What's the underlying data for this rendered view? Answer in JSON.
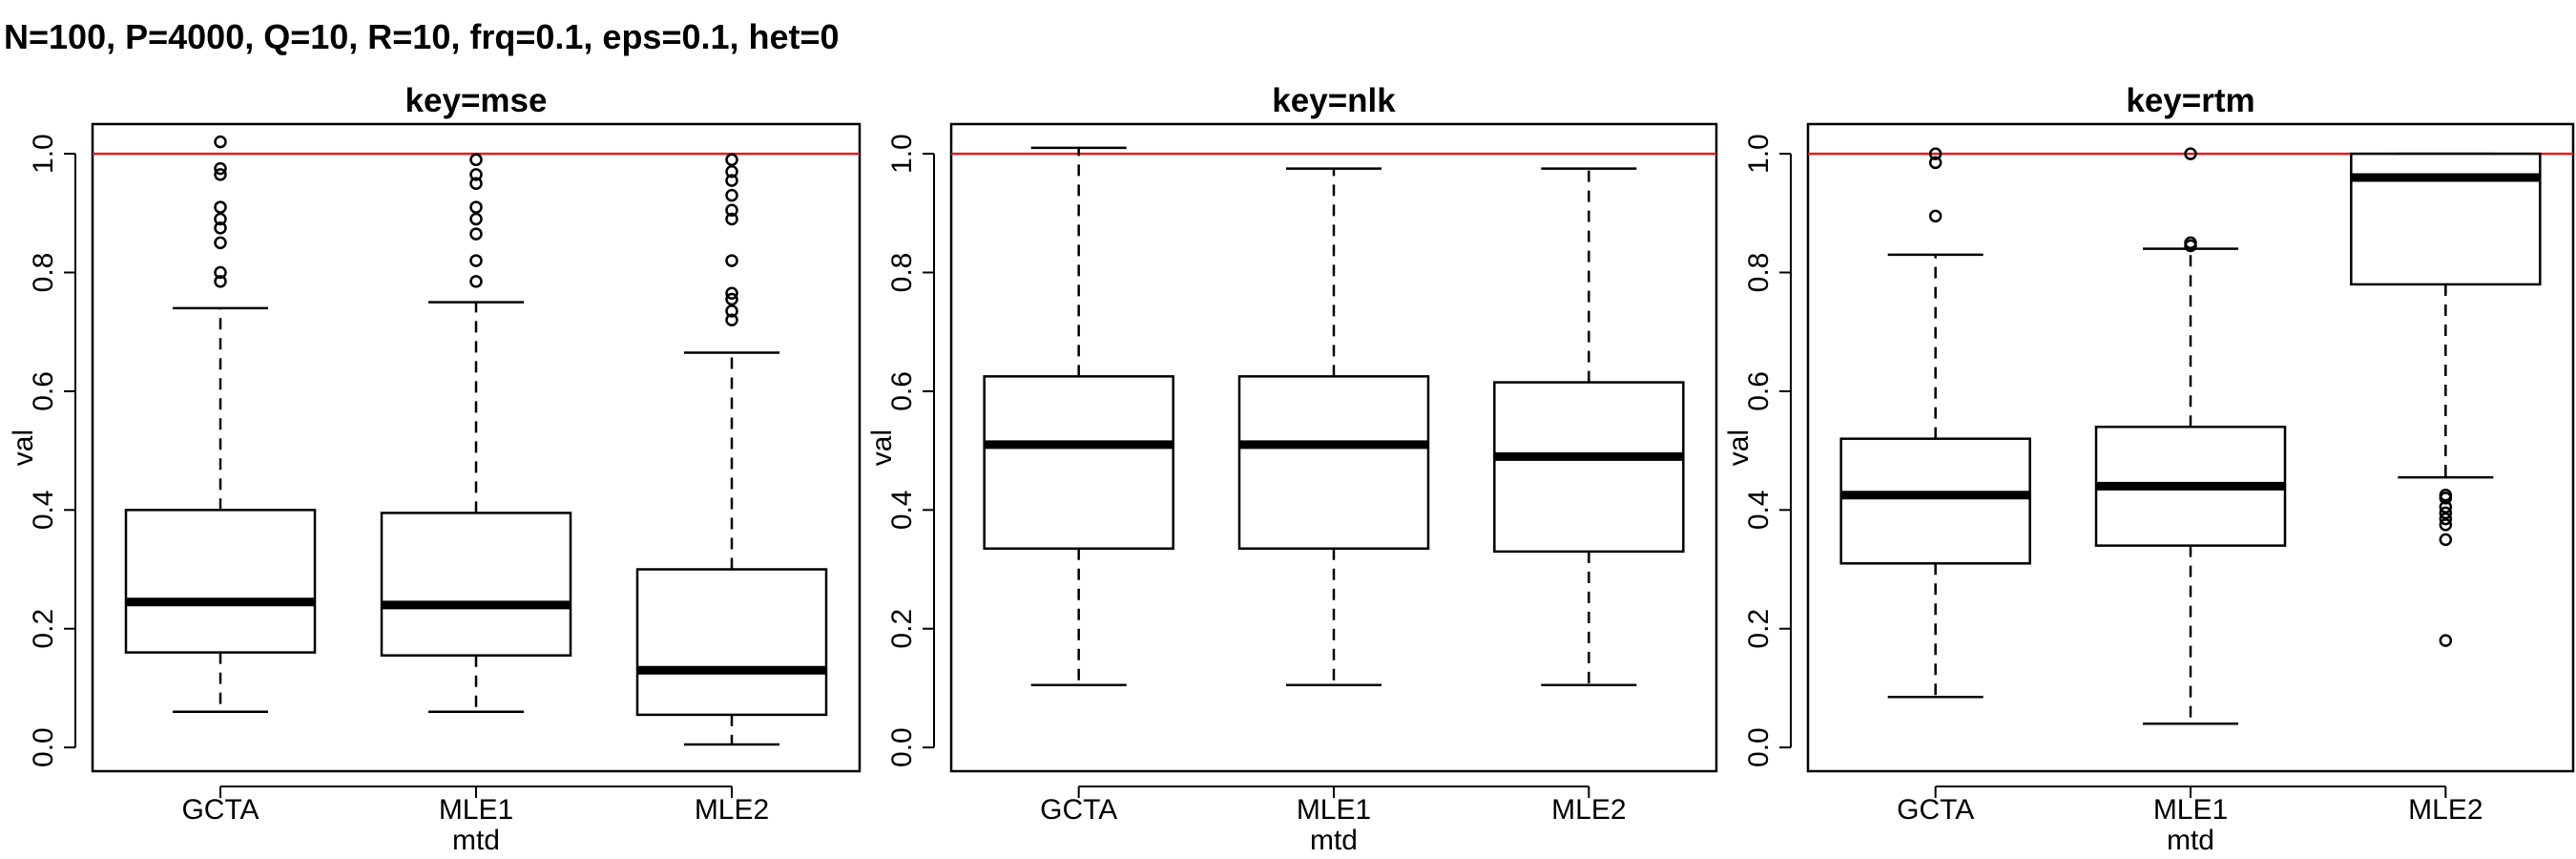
{
  "title": "N=100, P=4000, Q=10, R=10, frq=0.1, eps=0.1, het=0",
  "colors": {
    "reference_line": "#e41a1c",
    "box": "#000000"
  },
  "chart_data": [
    {
      "type": "boxplot",
      "title": "key=mse",
      "xlabel": "mtd",
      "ylabel": "val",
      "categories": [
        "GCTA",
        "MLE1",
        "MLE2"
      ],
      "ylim": [
        -0.04,
        1.05
      ],
      "yticks": [
        "0.0",
        "0.2",
        "0.4",
        "0.6",
        "0.8",
        "1.0"
      ],
      "reference_line": 1.0,
      "boxes": [
        {
          "name": "GCTA",
          "min": 0.06,
          "q1": 0.16,
          "median": 0.245,
          "q3": 0.4,
          "max": 0.74,
          "outliers": [
            0.785,
            0.8,
            0.85,
            0.875,
            0.89,
            0.91,
            0.965,
            0.975,
            1.02
          ]
        },
        {
          "name": "MLE1",
          "min": 0.06,
          "q1": 0.155,
          "median": 0.24,
          "q3": 0.395,
          "max": 0.75,
          "outliers": [
            0.785,
            0.82,
            0.865,
            0.89,
            0.91,
            0.95,
            0.965,
            0.99
          ]
        },
        {
          "name": "MLE2",
          "min": 0.005,
          "q1": 0.055,
          "median": 0.13,
          "q3": 0.3,
          "max": 0.665,
          "outliers": [
            0.72,
            0.735,
            0.755,
            0.765,
            0.82,
            0.89,
            0.905,
            0.93,
            0.955,
            0.97,
            0.99
          ]
        }
      ]
    },
    {
      "type": "boxplot",
      "title": "key=nlk",
      "xlabel": "mtd",
      "ylabel": "val",
      "categories": [
        "GCTA",
        "MLE1",
        "MLE2"
      ],
      "ylim": [
        -0.04,
        1.05
      ],
      "yticks": [
        "0.0",
        "0.2",
        "0.4",
        "0.6",
        "0.8",
        "1.0"
      ],
      "reference_line": 1.0,
      "boxes": [
        {
          "name": "GCTA",
          "min": 0.105,
          "q1": 0.335,
          "median": 0.51,
          "q3": 0.625,
          "max": 1.01,
          "outliers": []
        },
        {
          "name": "MLE1",
          "min": 0.105,
          "q1": 0.335,
          "median": 0.51,
          "q3": 0.625,
          "max": 0.975,
          "outliers": []
        },
        {
          "name": "MLE2",
          "min": 0.105,
          "q1": 0.33,
          "median": 0.49,
          "q3": 0.615,
          "max": 0.975,
          "outliers": []
        }
      ]
    },
    {
      "type": "boxplot",
      "title": "key=rtm",
      "xlabel": "mtd",
      "ylabel": "val",
      "categories": [
        "GCTA",
        "MLE1",
        "MLE2"
      ],
      "ylim": [
        -0.04,
        1.05
      ],
      "yticks": [
        "0.0",
        "0.2",
        "0.4",
        "0.6",
        "0.8",
        "1.0"
      ],
      "reference_line": 1.0,
      "boxes": [
        {
          "name": "GCTA",
          "min": 0.085,
          "q1": 0.31,
          "median": 0.425,
          "q3": 0.52,
          "max": 0.83,
          "outliers": [
            0.895,
            0.985,
            1.0
          ]
        },
        {
          "name": "MLE1",
          "min": 0.04,
          "q1": 0.34,
          "median": 0.44,
          "q3": 0.54,
          "max": 0.84,
          "outliers": [
            0.845,
            0.85,
            1.0
          ]
        },
        {
          "name": "MLE2",
          "min": 0.455,
          "q1": 0.78,
          "median": 0.96,
          "q3": 1.0,
          "max": 1.0,
          "outliers": [
            0.18,
            0.35,
            0.375,
            0.385,
            0.395,
            0.405,
            0.42,
            0.425
          ]
        }
      ]
    }
  ]
}
